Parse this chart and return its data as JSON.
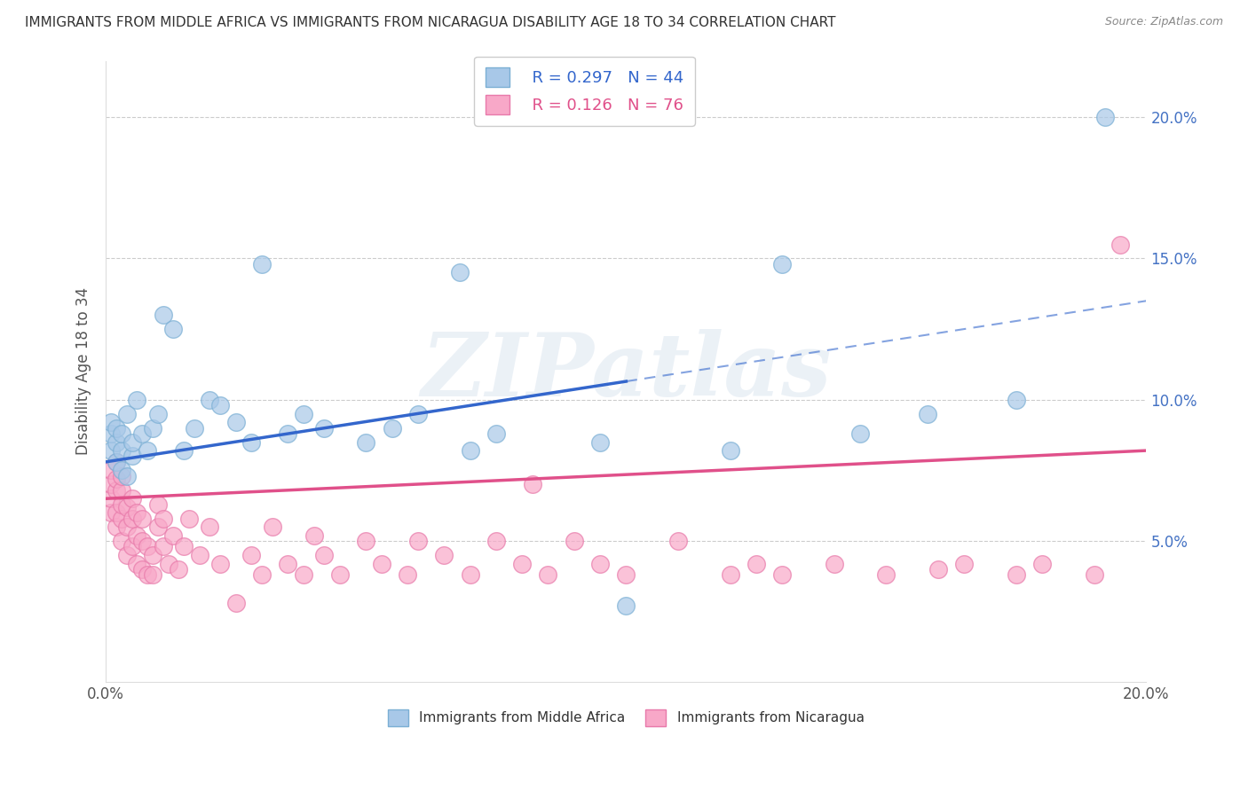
{
  "title": "IMMIGRANTS FROM MIDDLE AFRICA VS IMMIGRANTS FROM NICARAGUA DISABILITY AGE 18 TO 34 CORRELATION CHART",
  "source": "Source: ZipAtlas.com",
  "ylabel": "Disability Age 18 to 34",
  "xlim": [
    0.0,
    0.2
  ],
  "ylim": [
    0.0,
    0.22
  ],
  "yticks": [
    0.05,
    0.1,
    0.15,
    0.2
  ],
  "ytick_labels": [
    "5.0%",
    "10.0%",
    "15.0%",
    "20.0%"
  ],
  "xticks": [
    0.0,
    0.05,
    0.1,
    0.15,
    0.2
  ],
  "xtick_labels": [
    "0.0%",
    "",
    "",
    "",
    "20.0%"
  ],
  "series1_label": "Immigrants from Middle Africa",
  "series1_R": "0.297",
  "series1_N": "44",
  "series1_color": "#a8c8e8",
  "series1_edge_color": "#7bafd4",
  "series1_line_color": "#3366cc",
  "series2_label": "Immigrants from Nicaragua",
  "series2_R": "0.126",
  "series2_N": "76",
  "series2_color": "#f8a8c8",
  "series2_edge_color": "#e87aaa",
  "series2_line_color": "#e0508a",
  "watermark": "ZIPatlas",
  "watermark_color": "#c8d8e8",
  "bg_color": "#ffffff",
  "grid_color": "#cccccc",
  "ytick_color": "#4472c4",
  "trend1_x0": 0.0,
  "trend1_y0": 0.078,
  "trend1_x1": 0.2,
  "trend1_y1": 0.135,
  "trend1_solid_end": 0.1,
  "trend2_x0": 0.0,
  "trend2_y0": 0.065,
  "trend2_x1": 0.2,
  "trend2_y1": 0.082,
  "series1_x": [
    0.001,
    0.001,
    0.001,
    0.002,
    0.002,
    0.002,
    0.003,
    0.003,
    0.003,
    0.004,
    0.004,
    0.005,
    0.005,
    0.006,
    0.007,
    0.008,
    0.009,
    0.01,
    0.011,
    0.013,
    0.015,
    0.017,
    0.02,
    0.022,
    0.025,
    0.028,
    0.03,
    0.035,
    0.038,
    0.042,
    0.05,
    0.055,
    0.06,
    0.068,
    0.07,
    0.075,
    0.095,
    0.1,
    0.12,
    0.13,
    0.145,
    0.158,
    0.175,
    0.192
  ],
  "series1_y": [
    0.082,
    0.088,
    0.092,
    0.078,
    0.085,
    0.09,
    0.075,
    0.082,
    0.088,
    0.073,
    0.095,
    0.08,
    0.085,
    0.1,
    0.088,
    0.082,
    0.09,
    0.095,
    0.13,
    0.125,
    0.082,
    0.09,
    0.1,
    0.098,
    0.092,
    0.085,
    0.148,
    0.088,
    0.095,
    0.09,
    0.085,
    0.09,
    0.095,
    0.145,
    0.082,
    0.088,
    0.085,
    0.027,
    0.082,
    0.148,
    0.088,
    0.095,
    0.1,
    0.2
  ],
  "series2_x": [
    0.001,
    0.001,
    0.001,
    0.001,
    0.002,
    0.002,
    0.002,
    0.002,
    0.002,
    0.003,
    0.003,
    0.003,
    0.003,
    0.003,
    0.004,
    0.004,
    0.004,
    0.005,
    0.005,
    0.005,
    0.006,
    0.006,
    0.006,
    0.007,
    0.007,
    0.007,
    0.008,
    0.008,
    0.009,
    0.009,
    0.01,
    0.01,
    0.011,
    0.011,
    0.012,
    0.013,
    0.014,
    0.015,
    0.016,
    0.018,
    0.02,
    0.022,
    0.025,
    0.028,
    0.03,
    0.032,
    0.035,
    0.038,
    0.04,
    0.042,
    0.045,
    0.05,
    0.053,
    0.058,
    0.06,
    0.065,
    0.07,
    0.075,
    0.08,
    0.082,
    0.085,
    0.09,
    0.095,
    0.1,
    0.11,
    0.12,
    0.125,
    0.13,
    0.14,
    0.15,
    0.16,
    0.165,
    0.175,
    0.18,
    0.19,
    0.195
  ],
  "series2_y": [
    0.06,
    0.065,
    0.07,
    0.075,
    0.055,
    0.06,
    0.068,
    0.072,
    0.078,
    0.05,
    0.058,
    0.063,
    0.068,
    0.073,
    0.045,
    0.055,
    0.062,
    0.048,
    0.058,
    0.065,
    0.042,
    0.052,
    0.06,
    0.04,
    0.05,
    0.058,
    0.038,
    0.048,
    0.038,
    0.045,
    0.055,
    0.063,
    0.048,
    0.058,
    0.042,
    0.052,
    0.04,
    0.048,
    0.058,
    0.045,
    0.055,
    0.042,
    0.028,
    0.045,
    0.038,
    0.055,
    0.042,
    0.038,
    0.052,
    0.045,
    0.038,
    0.05,
    0.042,
    0.038,
    0.05,
    0.045,
    0.038,
    0.05,
    0.042,
    0.07,
    0.038,
    0.05,
    0.042,
    0.038,
    0.05,
    0.038,
    0.042,
    0.038,
    0.042,
    0.038,
    0.04,
    0.042,
    0.038,
    0.042,
    0.038,
    0.155
  ]
}
